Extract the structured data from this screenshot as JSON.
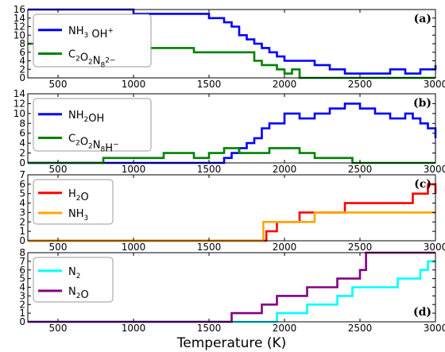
{
  "chart_data": {
    "x_axis_label": "Temperature (K)",
    "xlim": [
      300,
      3000
    ],
    "xticks": [
      "500",
      "1000",
      "1500",
      "2000",
      "2500",
      "3000"
    ],
    "panels": [
      {
        "label": "(a)",
        "type": "line",
        "ylim": [
          0,
          16
        ],
        "yticks": [
          "0",
          "2",
          "4",
          "6",
          "8",
          "10",
          "12",
          "14",
          "16"
        ],
        "legend": "top-left",
        "series": [
          {
            "name_parts": [
              [
                "NH",
                "n"
              ],
              [
                "3",
                "sub"
              ],
              [
                " OH",
                "n"
              ],
              [
                "+",
                "sup"
              ]
            ],
            "color": "#0000ff",
            "x": [
              300,
              800,
              1000,
              1200,
              1400,
              1500,
              1600,
              1650,
              1700,
              1750,
              1800,
              1850,
              1900,
              1950,
              2000,
              2100,
              2200,
              2300,
              2400,
              2500,
              2600,
              2700,
              2800,
              2900,
              3000
            ],
            "y": [
              16,
              16,
              15,
              15,
              15,
              14,
              13,
              12,
              10,
              9,
              8,
              7,
              6,
              5,
              4,
              4,
              3,
              2,
              1,
              1,
              1,
              2,
              1,
              2,
              3
            ]
          },
          {
            "name_parts": [
              [
                "C",
                "n"
              ],
              [
                "2",
                "sub"
              ],
              [
                "O",
                "n"
              ],
              [
                "2",
                "sub"
              ],
              [
                "N",
                "n"
              ],
              [
                "8",
                "sub"
              ],
              [
                "2−",
                "sup"
              ]
            ],
            "color": "#008000",
            "x": [
              300,
              600,
              800,
              1000,
              1200,
              1400,
              1500,
              1600,
              1700,
              1800,
              1850,
              1900,
              1950,
              2000,
              2050,
              2100,
              2150,
              3000
            ],
            "y": [
              8,
              7,
              7,
              7,
              7,
              6,
              6,
              6,
              6,
              4,
              3,
              3,
              2,
              1,
              2,
              0,
              0,
              0
            ]
          }
        ]
      },
      {
        "label": "(b)",
        "type": "line",
        "ylim": [
          0,
          14
        ],
        "yticks": [
          "0",
          "2",
          "4",
          "6",
          "8",
          "10",
          "12",
          "14"
        ],
        "legend": "top-left",
        "series": [
          {
            "name_parts": [
              [
                "NH",
                "n"
              ],
              [
                "2",
                "sub"
              ],
              [
                "OH",
                "n"
              ]
            ],
            "color": "#0000ff",
            "x": [
              300,
              1500,
              1600,
              1650,
              1700,
              1750,
              1800,
              1850,
              1900,
              1950,
              2000,
              2100,
              2200,
              2300,
              2400,
              2500,
              2600,
              2700,
              2800,
              2850,
              2900,
              2950,
              3000
            ],
            "y": [
              0,
              0,
              1,
              2,
              3,
              4,
              5,
              7,
              8,
              8,
              10,
              9,
              10,
              11,
              12,
              11,
              10,
              9,
              10,
              9,
              8,
              7,
              5
            ]
          },
          {
            "name_parts": [
              [
                "C",
                "n"
              ],
              [
                "2",
                "sub"
              ],
              [
                "O",
                "n"
              ],
              [
                "2",
                "sub"
              ],
              [
                "N",
                "n"
              ],
              [
                "8",
                "sub"
              ],
              [
                "H",
                "n"
              ],
              [
                "−",
                "sup"
              ]
            ],
            "color": "#008000",
            "x": [
              300,
              600,
              800,
              1000,
              1100,
              1200,
              1300,
              1400,
              1500,
              1600,
              1700,
              1800,
              1900,
              2000,
              2100,
              2150,
              2200,
              2300,
              2400,
              2450,
              3000
            ],
            "y": [
              0,
              0,
              1,
              1,
              1,
              2,
              2,
              1,
              2,
              3,
              2,
              2,
              3,
              3,
              2,
              2,
              1,
              1,
              1,
              0,
              0
            ]
          }
        ]
      },
      {
        "label": "(c)",
        "type": "line",
        "ylim": [
          0,
          7
        ],
        "yticks": [
          "0",
          "1",
          "2",
          "3",
          "4",
          "5",
          "6",
          "7"
        ],
        "legend": "top-left",
        "series": [
          {
            "name_parts": [
              [
                "H",
                "n"
              ],
              [
                "2",
                "sub"
              ],
              [
                "O",
                "n"
              ]
            ],
            "color": "#ff0000",
            "x": [
              300,
              1860,
              1880,
              1950,
              2000,
              2100,
              2200,
              2300,
              2400,
              2500,
              2600,
              2700,
              2800,
              2850,
              2900,
              2950,
              3000
            ],
            "y": [
              0,
              0,
              1,
              2,
              2,
              3,
              3,
              3,
              4,
              4,
              4,
              4,
              4,
              5,
              5,
              6,
              5
            ]
          },
          {
            "name_parts": [
              [
                "NH",
                "n"
              ],
              [
                "3",
                "sub"
              ]
            ],
            "color": "#ffa500",
            "x": [
              300,
              1840,
              1860,
              2000,
              2100,
              2200,
              2300,
              2400,
              2500,
              2600,
              2700,
              2800,
              2900,
              3000
            ],
            "y": [
              0,
              0,
              2,
              2,
              2,
              3,
              3,
              3,
              3,
              3,
              3,
              3,
              3,
              3
            ]
          }
        ]
      },
      {
        "label": "(d)",
        "type": "line",
        "ylim": [
          0,
          8
        ],
        "yticks": [
          "0",
          "1",
          "2",
          "3",
          "4",
          "5",
          "6",
          "7",
          "8"
        ],
        "legend": "top-left",
        "series": [
          {
            "name_parts": [
              [
                "N",
                "n"
              ],
              [
                "2",
                "sub"
              ]
            ],
            "color": "#00ffff",
            "x": [
              300,
              1900,
              1950,
              2050,
              2150,
              2250,
              2350,
              2450,
              2550,
              2650,
              2750,
              2850,
              2900,
              2950,
              3000
            ],
            "y": [
              0,
              0,
              1,
              1,
              2,
              2,
              3,
              4,
              4,
              4,
              5,
              5,
              6,
              7,
              7
            ]
          },
          {
            "name_parts": [
              [
                "N",
                "n"
              ],
              [
                "2",
                "sub"
              ],
              [
                "O",
                "n"
              ]
            ],
            "color": "#800080",
            "x": [
              300,
              1600,
              1650,
              1750,
              1850,
              1950,
              2050,
              2150,
              2250,
              2350,
              2450,
              2500,
              2540,
              3000
            ],
            "y": [
              0,
              0,
              1,
              1,
              2,
              3,
              3,
              4,
              4,
              5,
              5,
              6,
              8,
              8
            ]
          }
        ]
      }
    ]
  }
}
